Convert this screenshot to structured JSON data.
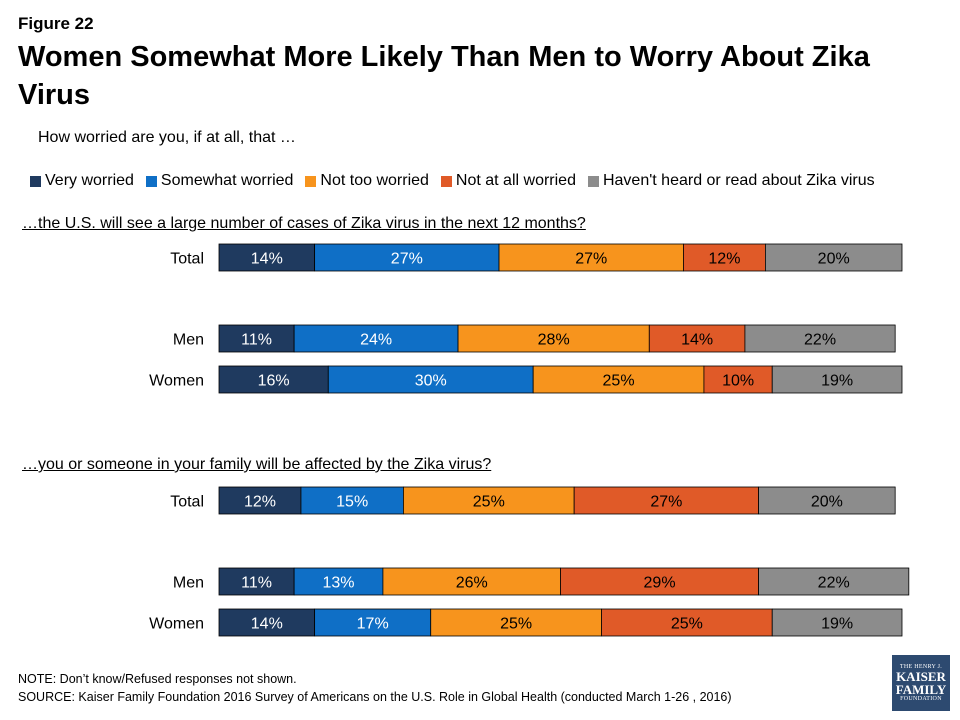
{
  "figure_label": "Figure 22",
  "title": "Women Somewhat More Likely Than Men to Worry About Zika Virus",
  "question_intro": "How worried are you, if at all, that …",
  "note": "NOTE: Don’t know/Refused responses not shown.",
  "source": "SOURCE: Kaiser Family Foundation 2016 Survey of Americans on the U.S. Role in Global Health (conducted March 1-26 , 2016)",
  "logo": {
    "line1": "THE HENRY J.",
    "line2": "KAISER",
    "line3": "FAMILY",
    "line4": "FOUNDATION"
  },
  "chart_data": {
    "type": "bar",
    "orientation": "horizontal",
    "stacked": true,
    "legend_position": "top",
    "series": [
      {
        "name": "Very worried",
        "color": "#1f3a5f",
        "text_color": "#ffffff"
      },
      {
        "name": "Somewhat worried",
        "color": "#0f6fc6",
        "text_color": "#ffffff"
      },
      {
        "name": "Not too worried",
        "color": "#f7941d",
        "text_color": "#000000"
      },
      {
        "name": "Not at all worried",
        "color": "#e05a28",
        "text_color": "#000000"
      },
      {
        "name": "Haven't heard or read about Zika virus",
        "color": "#8c8c8c",
        "text_color": "#000000"
      }
    ],
    "groups": [
      {
        "question": "…the U.S. will see a large number of cases of Zika virus in the next 12 months?",
        "rows": [
          {
            "label": "Total",
            "values": [
              14,
              27,
              27,
              12,
              20
            ]
          },
          {
            "label": "Men",
            "values": [
              11,
              24,
              28,
              14,
              22
            ]
          },
          {
            "label": "Women",
            "values": [
              16,
              30,
              25,
              10,
              19
            ]
          }
        ]
      },
      {
        "question": "…you or someone in your family  will be affected by the Zika virus?",
        "rows": [
          {
            "label": "Total",
            "values": [
              12,
              15,
              25,
              27,
              20
            ]
          },
          {
            "label": "Men",
            "values": [
              11,
              13,
              26,
              29,
              22
            ]
          },
          {
            "label": "Women",
            "values": [
              14,
              17,
              25,
              25,
              19
            ]
          }
        ]
      }
    ]
  }
}
